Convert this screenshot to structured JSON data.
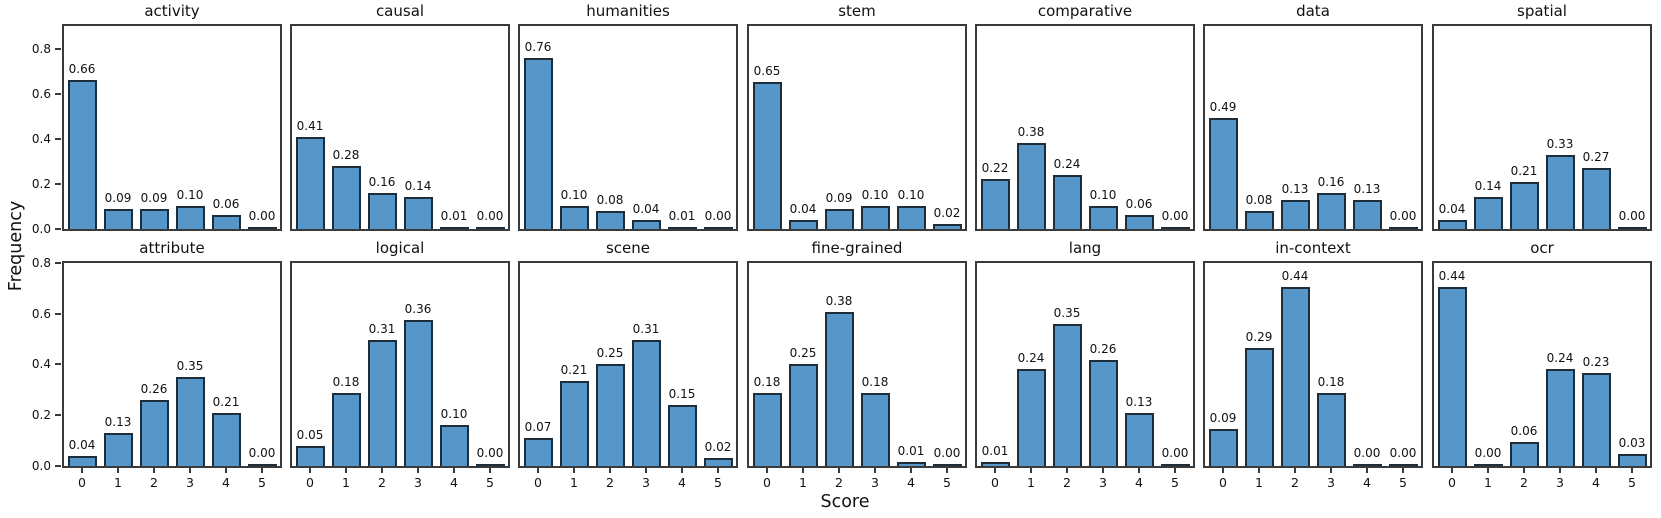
{
  "figure": {
    "xlabel": "Score",
    "ylabel": "Frequency",
    "colors": {
      "bar_fill": "#5796c8",
      "bar_edge": "#1e2d3a",
      "spine": "#3a3a3a",
      "text": "#111111",
      "background": "#ffffff"
    }
  },
  "chart_data": {
    "type": "bar",
    "grid": {
      "rows": 2,
      "cols": 7
    },
    "xlabel": "Score",
    "ylabel": "Frequency",
    "x": [
      0,
      1,
      2,
      3,
      4,
      5
    ],
    "y_ticks": [
      0.0,
      0.2,
      0.4,
      0.6,
      0.8
    ],
    "y_tick_labels_shown": "leftmost column only",
    "x_tick_labels_shown": "bottom row only",
    "legend": "none",
    "subplots": [
      {
        "title": "activity",
        "row": 0,
        "values": [
          0.66,
          0.09,
          0.09,
          0.1,
          0.06,
          0.0
        ],
        "ylim": [
          0,
          0.9
        ]
      },
      {
        "title": "causal",
        "row": 0,
        "values": [
          0.41,
          0.28,
          0.16,
          0.14,
          0.01,
          0.0
        ],
        "ylim": [
          0,
          0.9
        ]
      },
      {
        "title": "humanities",
        "row": 0,
        "values": [
          0.76,
          0.1,
          0.08,
          0.04,
          0.01,
          0.0
        ],
        "ylim": [
          0,
          0.9
        ]
      },
      {
        "title": "stem",
        "row": 0,
        "values": [
          0.65,
          0.04,
          0.09,
          0.1,
          0.1,
          0.02
        ],
        "ylim": [
          0,
          0.9
        ]
      },
      {
        "title": "comparative",
        "row": 0,
        "values": [
          0.22,
          0.38,
          0.24,
          0.1,
          0.06,
          0.0
        ],
        "ylim": [
          0,
          0.9
        ]
      },
      {
        "title": "data",
        "row": 0,
        "values": [
          0.49,
          0.08,
          0.13,
          0.16,
          0.13,
          0.0
        ],
        "ylim": [
          0,
          0.9
        ]
      },
      {
        "title": "spatial",
        "row": 0,
        "values": [
          0.04,
          0.14,
          0.21,
          0.33,
          0.27,
          0.0
        ],
        "ylim": [
          0,
          0.9
        ]
      },
      {
        "title": "attribute",
        "row": 1,
        "values": [
          0.04,
          0.13,
          0.26,
          0.35,
          0.21,
          0.0
        ],
        "ylim": [
          0,
          0.8
        ]
      },
      {
        "title": "logical",
        "row": 1,
        "values": [
          0.05,
          0.18,
          0.31,
          0.36,
          0.1,
          0.0
        ],
        "ylim": [
          0,
          0.5
        ]
      },
      {
        "title": "scene",
        "row": 1,
        "values": [
          0.07,
          0.21,
          0.25,
          0.31,
          0.15,
          0.02
        ],
        "ylim": [
          0,
          0.5
        ]
      },
      {
        "title": "fine-grained",
        "row": 1,
        "values": [
          0.18,
          0.25,
          0.38,
          0.18,
          0.01,
          0.0
        ],
        "ylim": [
          0,
          0.5
        ]
      },
      {
        "title": "lang",
        "row": 1,
        "values": [
          0.01,
          0.24,
          0.35,
          0.26,
          0.13,
          0.0
        ],
        "ylim": [
          0,
          0.5
        ]
      },
      {
        "title": "in-context",
        "row": 1,
        "values": [
          0.09,
          0.29,
          0.44,
          0.18,
          0.0,
          0.0
        ],
        "ylim": [
          0,
          0.5
        ]
      },
      {
        "title": "ocr",
        "row": 1,
        "values": [
          0.44,
          0.0,
          0.06,
          0.24,
          0.23,
          0.03
        ],
        "ylim": [
          0,
          0.5
        ]
      }
    ]
  }
}
